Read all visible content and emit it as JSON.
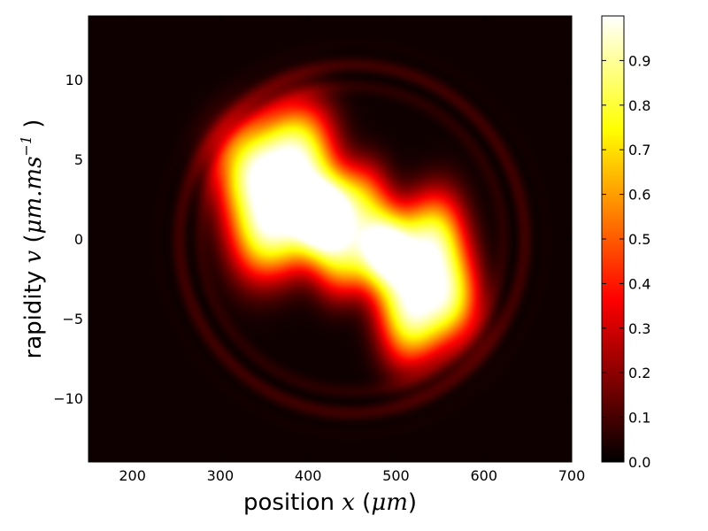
{
  "chart_data": {
    "type": "heatmap",
    "title": "",
    "xlabel": {
      "text": "position",
      "math": "x",
      "unit": "μm"
    },
    "ylabel": {
      "text": "rapidity",
      "math": "v",
      "unit": "μm.ms",
      "unit_sup": "−1"
    },
    "xlim": [
      150,
      700
    ],
    "ylim": [
      -14,
      14
    ],
    "xticks": [
      200,
      300,
      400,
      500,
      600,
      700
    ],
    "yticks": [
      -10,
      -5,
      0,
      5,
      10
    ],
    "ytick_labels": [
      "−10",
      "−5",
      "0",
      "5",
      "10"
    ],
    "colorbar": {
      "colormap": "hot",
      "range": [
        0.0,
        1.0
      ],
      "ticks": [
        0.0,
        0.1,
        0.2,
        0.3,
        0.4,
        0.5,
        0.6,
        0.7,
        0.8,
        0.9
      ],
      "tick_labels": [
        "0.0",
        "0.1",
        "0.2",
        "0.3",
        "0.4",
        "0.5",
        "0.6",
        "0.7",
        "0.8",
        "0.9"
      ]
    },
    "grid": false,
    "features": [
      {
        "name": "upper-left lobe",
        "center": [
          370,
          3
        ],
        "peak": 1.0
      },
      {
        "name": "lower-right lobe",
        "center": [
          530,
          -2
        ],
        "peak": 0.95
      },
      {
        "name": "fringes",
        "location": "outer edges near x≈230–300,v≈5–10 and x≈560–620,v≈-5–-10",
        "value": 0.1
      }
    ]
  }
}
